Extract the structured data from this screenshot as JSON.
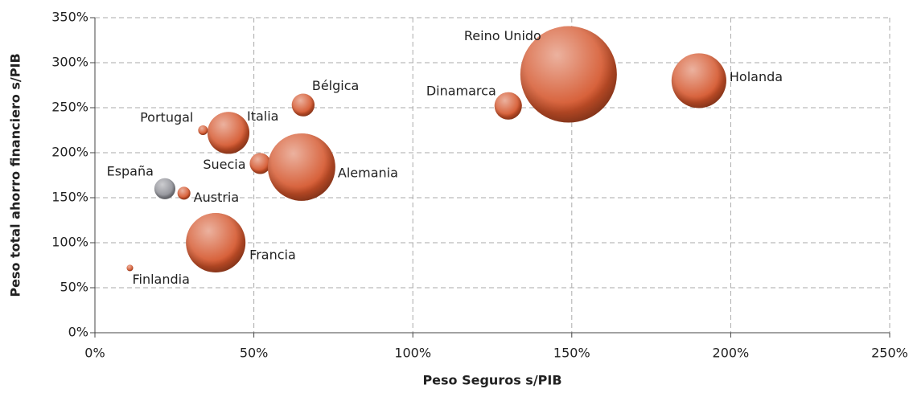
{
  "chart_data": {
    "type": "scatter",
    "x_label": "Peso Seguros s/PIB",
    "y_label": "Peso total ahorro financiero s/PIB",
    "xlim": [
      0,
      250
    ],
    "ylim": [
      0,
      350
    ],
    "xticks": [
      {
        "value": 0,
        "label": "0%"
      },
      {
        "value": 50,
        "label": "50%"
      },
      {
        "value": 100,
        "label": "100%"
      },
      {
        "value": 150,
        "label": "150%"
      },
      {
        "value": 200,
        "label": "200%"
      },
      {
        "value": 250,
        "label": "250%"
      }
    ],
    "yticks": [
      {
        "value": 0,
        "label": "0%"
      },
      {
        "value": 50,
        "label": "50%"
      },
      {
        "value": 100,
        "label": "100%"
      },
      {
        "value": 150,
        "label": "150%"
      },
      {
        "value": 200,
        "label": "200%"
      },
      {
        "value": 250,
        "label": "250%"
      },
      {
        "value": 300,
        "label": "300%"
      },
      {
        "value": 350,
        "label": "350%"
      }
    ],
    "grid": true,
    "labels": [
      "Finlandia",
      "España",
      "Austria",
      "Portugal",
      "Italia",
      "Francia",
      "Suecia",
      "Alemania",
      "Bélgica",
      "Dinamarca",
      "Reino Unido",
      "Holanda"
    ],
    "x": [
      11,
      22,
      28,
      34,
      42,
      38,
      52,
      65,
      65.5,
      130,
      149,
      190
    ],
    "values": [
      72,
      160,
      155,
      225,
      222,
      100,
      188,
      184,
      253,
      252,
      287,
      280
    ],
    "sizes": [
      0.16,
      1.7,
      0.64,
      0.36,
      6.8,
      13.7,
      1.7,
      17.6,
      2,
      2.9,
      36,
      11.6
    ],
    "colors": [
      "#d4542a",
      "#8e8f96",
      "#d4542a",
      "#d4542a",
      "#d4542a",
      "#d4542a",
      "#d4542a",
      "#d4542a",
      "#d4542a",
      "#d4542a",
      "#d4542a",
      "#d4542a"
    ]
  }
}
